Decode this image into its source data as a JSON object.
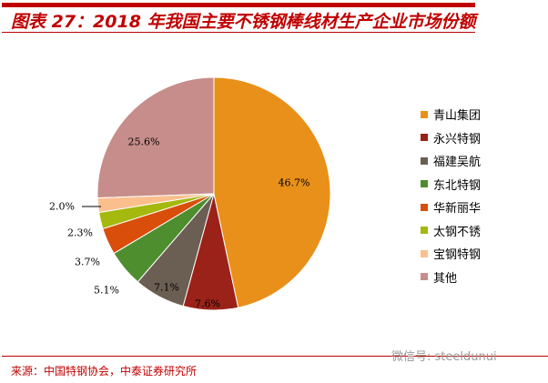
{
  "header": {
    "title": "图表 27：2018 年我国主要不锈钢棒线材生产企业市场份额"
  },
  "footer": {
    "source": "来源：中国特钢协会，中泰证券研究所",
    "watermark": "微信号: steeldunui"
  },
  "chart_data": {
    "type": "pie",
    "title": "2018 年我国主要不锈钢棒线材生产企业市场份额",
    "start": "top",
    "direction": "clockwise",
    "legend_position": "right",
    "categories": [
      "青山集团",
      "永兴特钢",
      "福建吴航",
      "东北特钢",
      "华新丽华",
      "太钢不锈",
      "宝钢特钢",
      "其他"
    ],
    "values": [
      46.7,
      7.6,
      7.1,
      5.1,
      3.7,
      2.3,
      2.0,
      25.6
    ],
    "labels": [
      "46.7%",
      "7.6%",
      "7.1%",
      "5.1%",
      "3.7%",
      "2.3%",
      "2.0%",
      "25.6%"
    ],
    "colors": [
      "#E8901A",
      "#9B2218",
      "#6B5E52",
      "#4E8E2E",
      "#D94E0A",
      "#A5B80E",
      "#FBBF8E",
      "#C78D8A"
    ]
  }
}
